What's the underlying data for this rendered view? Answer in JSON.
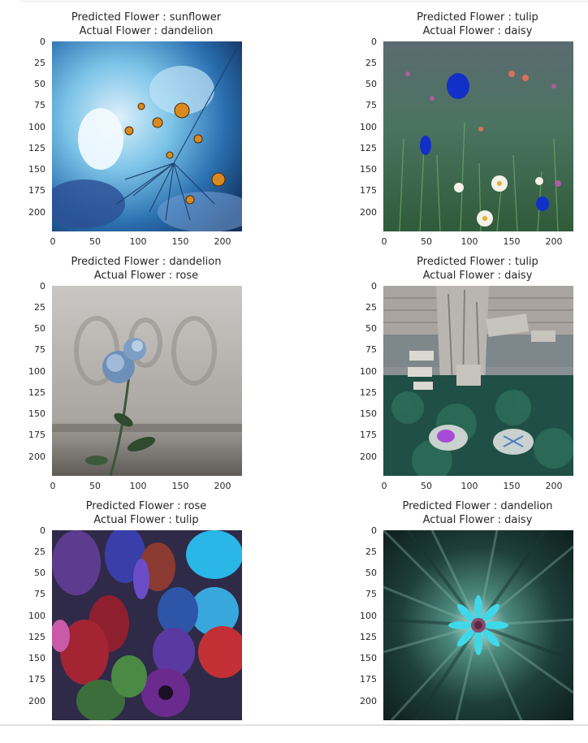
{
  "tick_values": [
    "0",
    "25",
    "50",
    "75",
    "100",
    "125",
    "150",
    "175",
    "200"
  ],
  "x_tick_values": [
    "0",
    "50",
    "100",
    "150",
    "200"
  ],
  "panels": [
    {
      "predicted": "Predicted Flower : sunflower",
      "actual": "Actual Flower : dandelion",
      "image": "dandelion-seed-photo"
    },
    {
      "predicted": "Predicted Flower : tulip",
      "actual": "Actual Flower : daisy",
      "image": "meadow-flowers-photo"
    },
    {
      "predicted": "Predicted Flower : dandelion",
      "actual": "Actual Flower : rose",
      "image": "blue-rose-photo"
    },
    {
      "predicted": "Predicted Flower : tulip",
      "actual": "Actual Flower : daisy",
      "image": "tree-garden-photo"
    },
    {
      "predicted": "Predicted Flower : rose",
      "actual": "Actual Flower : tulip",
      "image": "flower-bouquet-photo"
    },
    {
      "predicted": "Predicted Flower : dandelion",
      "actual": "Actual Flower : daisy",
      "image": "zoom-blur-daisy-photo"
    }
  ]
}
